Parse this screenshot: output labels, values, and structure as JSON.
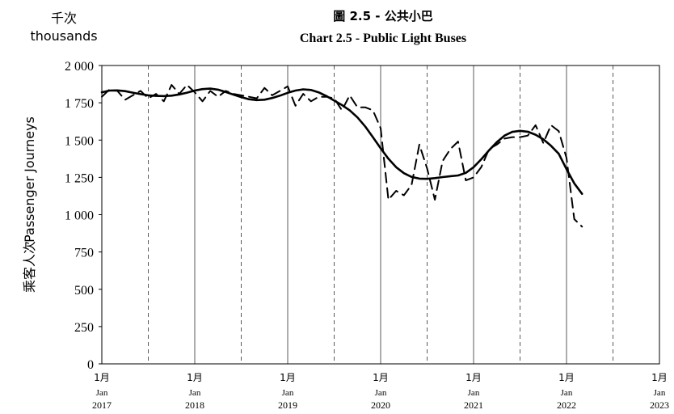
{
  "chart_data": {
    "type": "line",
    "title_cn": "圖 2.5 - 公共小巴",
    "title": "Chart 2.5 - Public Light Buses",
    "unit_cn": "千次",
    "unit_en": "thousands",
    "ylabel_cn": "乘客人次",
    "ylabel": "Passenger Journeys",
    "ylim": [
      0,
      2000
    ],
    "yticks": [
      0,
      250,
      500,
      750,
      1000,
      1250,
      1500,
      1750,
      2000
    ],
    "ytick_labels": [
      "0",
      "250",
      "500",
      "750",
      "1 000",
      "1 250",
      "1 500",
      "1 750",
      "2 000"
    ],
    "xlim": [
      2017.0,
      2023.0
    ],
    "xtick_labels": [
      {
        "cn": "1月",
        "en": "Jan",
        "year": "2017"
      },
      {
        "cn": "1月",
        "en": "Jan",
        "year": "2018"
      },
      {
        "cn": "1月",
        "en": "Jan",
        "year": "2019"
      },
      {
        "cn": "1月",
        "en": "Jan",
        "year": "2020"
      },
      {
        "cn": "1月",
        "en": "Jan",
        "year": "2021"
      },
      {
        "cn": "1月",
        "en": "Jan",
        "year": "2022"
      },
      {
        "cn": "1月",
        "en": "Jan",
        "year": "2023"
      }
    ],
    "series": [
      {
        "style": "dashed",
        "x": [
          "2017-01",
          "2017-02",
          "2017-03",
          "2017-04",
          "2017-05",
          "2017-06",
          "2017-07",
          "2017-08",
          "2017-09",
          "2017-10",
          "2017-11",
          "2017-12",
          "2018-01",
          "2018-02",
          "2018-03",
          "2018-04",
          "2018-05",
          "2018-06",
          "2018-07",
          "2018-08",
          "2018-09",
          "2018-10",
          "2018-11",
          "2018-12",
          "2019-01",
          "2019-02",
          "2019-03",
          "2019-04",
          "2019-05",
          "2019-06",
          "2019-07",
          "2019-08",
          "2019-09",
          "2019-10",
          "2019-11",
          "2019-12",
          "2020-01",
          "2020-02",
          "2020-03",
          "2020-04",
          "2020-05",
          "2020-06",
          "2020-07",
          "2020-08",
          "2020-09",
          "2020-10",
          "2020-11",
          "2020-12",
          "2021-01",
          "2021-02",
          "2021-03",
          "2021-04",
          "2021-05",
          "2021-06",
          "2021-07",
          "2021-08",
          "2021-09",
          "2021-10",
          "2021-11",
          "2021-12",
          "2022-01",
          "2022-02",
          "2022-03"
        ],
        "values": [
          1790,
          1840,
          1830,
          1770,
          1800,
          1830,
          1780,
          1810,
          1760,
          1870,
          1810,
          1870,
          1820,
          1760,
          1830,
          1790,
          1830,
          1810,
          1800,
          1790,
          1780,
          1850,
          1800,
          1830,
          1860,
          1730,
          1810,
          1760,
          1790,
          1790,
          1780,
          1700,
          1800,
          1720,
          1720,
          1700,
          1580,
          1100,
          1160,
          1130,
          1200,
          1470,
          1310,
          1100,
          1360,
          1440,
          1490,
          1230,
          1250,
          1320,
          1440,
          1470,
          1510,
          1520,
          1520,
          1530,
          1600,
          1480,
          1600,
          1560,
          1380,
          970,
          920
        ]
      },
      {
        "style": "solid",
        "x": [
          "2017-01",
          "2017-02",
          "2017-03",
          "2017-04",
          "2017-05",
          "2017-06",
          "2017-07",
          "2017-08",
          "2017-09",
          "2017-10",
          "2017-11",
          "2017-12",
          "2018-01",
          "2018-02",
          "2018-03",
          "2018-04",
          "2018-05",
          "2018-06",
          "2018-07",
          "2018-08",
          "2018-09",
          "2018-10",
          "2018-11",
          "2018-12",
          "2019-01",
          "2019-02",
          "2019-03",
          "2019-04",
          "2019-05",
          "2019-06",
          "2019-07",
          "2019-08",
          "2019-09",
          "2019-10",
          "2019-11",
          "2019-12",
          "2020-01",
          "2020-02",
          "2020-03",
          "2020-04",
          "2020-05",
          "2020-06",
          "2020-07",
          "2020-08",
          "2020-09",
          "2020-10",
          "2020-11",
          "2020-12",
          "2021-01",
          "2021-02",
          "2021-03",
          "2021-04",
          "2021-05",
          "2021-06",
          "2021-07",
          "2021-08",
          "2021-09",
          "2021-10",
          "2021-11",
          "2021-12",
          "2022-01",
          "2022-02",
          "2022-03"
        ],
        "values": [
          1820,
          1832,
          1833,
          1828,
          1818,
          1808,
          1800,
          1796,
          1795,
          1798,
          1806,
          1818,
          1832,
          1842,
          1845,
          1838,
          1822,
          1805,
          1788,
          1774,
          1768,
          1771,
          1782,
          1798,
          1817,
          1832,
          1840,
          1836,
          1820,
          1795,
          1765,
          1735,
          1700,
          1652,
          1592,
          1520,
          1445,
          1375,
          1318,
          1278,
          1253,
          1242,
          1240,
          1245,
          1252,
          1258,
          1263,
          1280,
          1318,
          1372,
          1432,
          1486,
          1530,
          1555,
          1562,
          1556,
          1536,
          1505,
          1462,
          1408,
          1305,
          1210,
          1140
        ]
      }
    ]
  }
}
